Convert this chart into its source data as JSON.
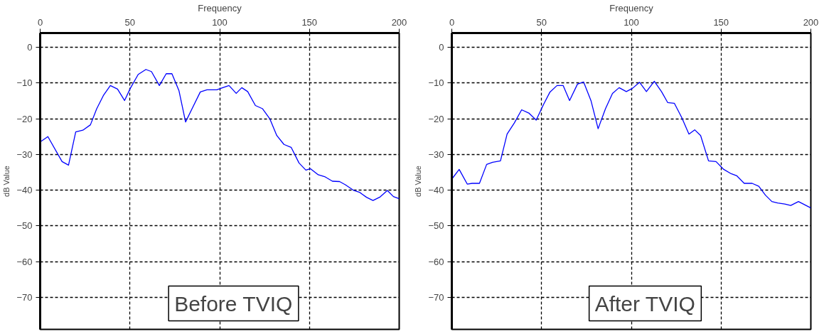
{
  "chart_data": [
    {
      "type": "line",
      "xlabel": "Frequency",
      "ylabel": "dB Value",
      "annotations": [
        "Before TVIQ"
      ],
      "x": [
        0,
        4.3,
        12.2,
        15.8,
        19.8,
        23.8,
        28,
        31.5,
        35.2,
        39.1,
        43.1,
        47,
        50.2,
        54.6,
        58.9,
        62,
        66.4,
        70.2,
        73.4,
        77.3,
        81,
        84.9,
        89.2,
        92.9,
        98.4,
        101.7,
        105.2,
        109.2,
        112.3,
        115.6,
        119.9,
        123.9,
        127.9,
        131.8,
        135.8,
        139.8,
        144.2,
        148,
        150.6,
        154.9,
        158.8,
        162.8,
        166.8,
        170,
        174.4,
        177.9,
        181.8,
        185.4,
        189.4,
        193.4,
        196.8,
        200
      ],
      "series": [
        {
          "color": "#0000ff",
          "values": [
            -26.5,
            -25,
            -32,
            -33,
            -23.7,
            -23.2,
            -21.7,
            -17.2,
            -13.5,
            -10.7,
            -11.7,
            -14.9,
            -11.5,
            -7.6,
            -6.2,
            -6.8,
            -10.7,
            -7.4,
            -7.4,
            -12.1,
            -20.9,
            -16.9,
            -12.5,
            -11.9,
            -11.9,
            -11.3,
            -10.7,
            -12.9,
            -11.3,
            -12.4,
            -16.3,
            -17.2,
            -20,
            -24.7,
            -27.2,
            -28,
            -32.4,
            -34.4,
            -34,
            -35.7,
            -36.3,
            -37.5,
            -37.6,
            -38.5,
            -40,
            -40.6,
            -42,
            -42.9,
            -41.9,
            -40.1,
            -41.8,
            -42.4
          ]
        }
      ],
      "xlim": [
        0,
        200
      ],
      "xticks": [
        0,
        50,
        100,
        150,
        200
      ],
      "ylim": [
        -79,
        4
      ],
      "yticks": [
        0,
        -10,
        -20,
        -30,
        -40,
        -50,
        -60,
        -70
      ],
      "grid": true,
      "line_style": "solid"
    },
    {
      "type": "line",
      "xlabel": "Frequency",
      "ylabel": "dB Value",
      "annotations": [
        "After TVIQ"
      ],
      "x": [
        0,
        4.1,
        8.6,
        11.3,
        15.4,
        19.4,
        22.7,
        27.1,
        30.8,
        34.8,
        38.9,
        42.9,
        47,
        51,
        54.7,
        58.6,
        62,
        65.6,
        70,
        73.4,
        77.5,
        81.5,
        85.6,
        89.5,
        93.2,
        97.2,
        100.6,
        104.6,
        108.4,
        112.8,
        116.8,
        120.3,
        124,
        128,
        132.1,
        135.3,
        138.6,
        143,
        147.2,
        151.5,
        155.6,
        158.8,
        162.9,
        167.3,
        171,
        174.7,
        178.3,
        181.5,
        185.5,
        188.8,
        193.1,
        200
      ],
      "series": [
        {
          "color": "#0000ff",
          "values": [
            -36.9,
            -34.2,
            -38.3,
            -38.1,
            -38.1,
            -32.8,
            -32.2,
            -31.8,
            -24.3,
            -21.2,
            -17.5,
            -18.4,
            -20.4,
            -16.1,
            -12.5,
            -10.7,
            -10.7,
            -14.9,
            -10.3,
            -9.7,
            -14.9,
            -22.8,
            -17.2,
            -12.9,
            -11.3,
            -12.4,
            -11.5,
            -9.8,
            -12.4,
            -9.5,
            -12.4,
            -15.5,
            -15.7,
            -19.6,
            -24.3,
            -23.1,
            -24.7,
            -31.8,
            -32,
            -34.2,
            -35.4,
            -36,
            -38.1,
            -38.1,
            -38.9,
            -41.4,
            -43.2,
            -43.6,
            -43.9,
            -44.3,
            -43.2,
            -45
          ]
        }
      ],
      "xlim": [
        0,
        200
      ],
      "xticks": [
        0,
        50,
        100,
        150,
        200
      ],
      "ylim": [
        -79,
        4
      ],
      "yticks": [
        0,
        -10,
        -20,
        -30,
        -40,
        -50,
        -60,
        -70
      ],
      "grid": true,
      "line_style": "solid"
    }
  ]
}
